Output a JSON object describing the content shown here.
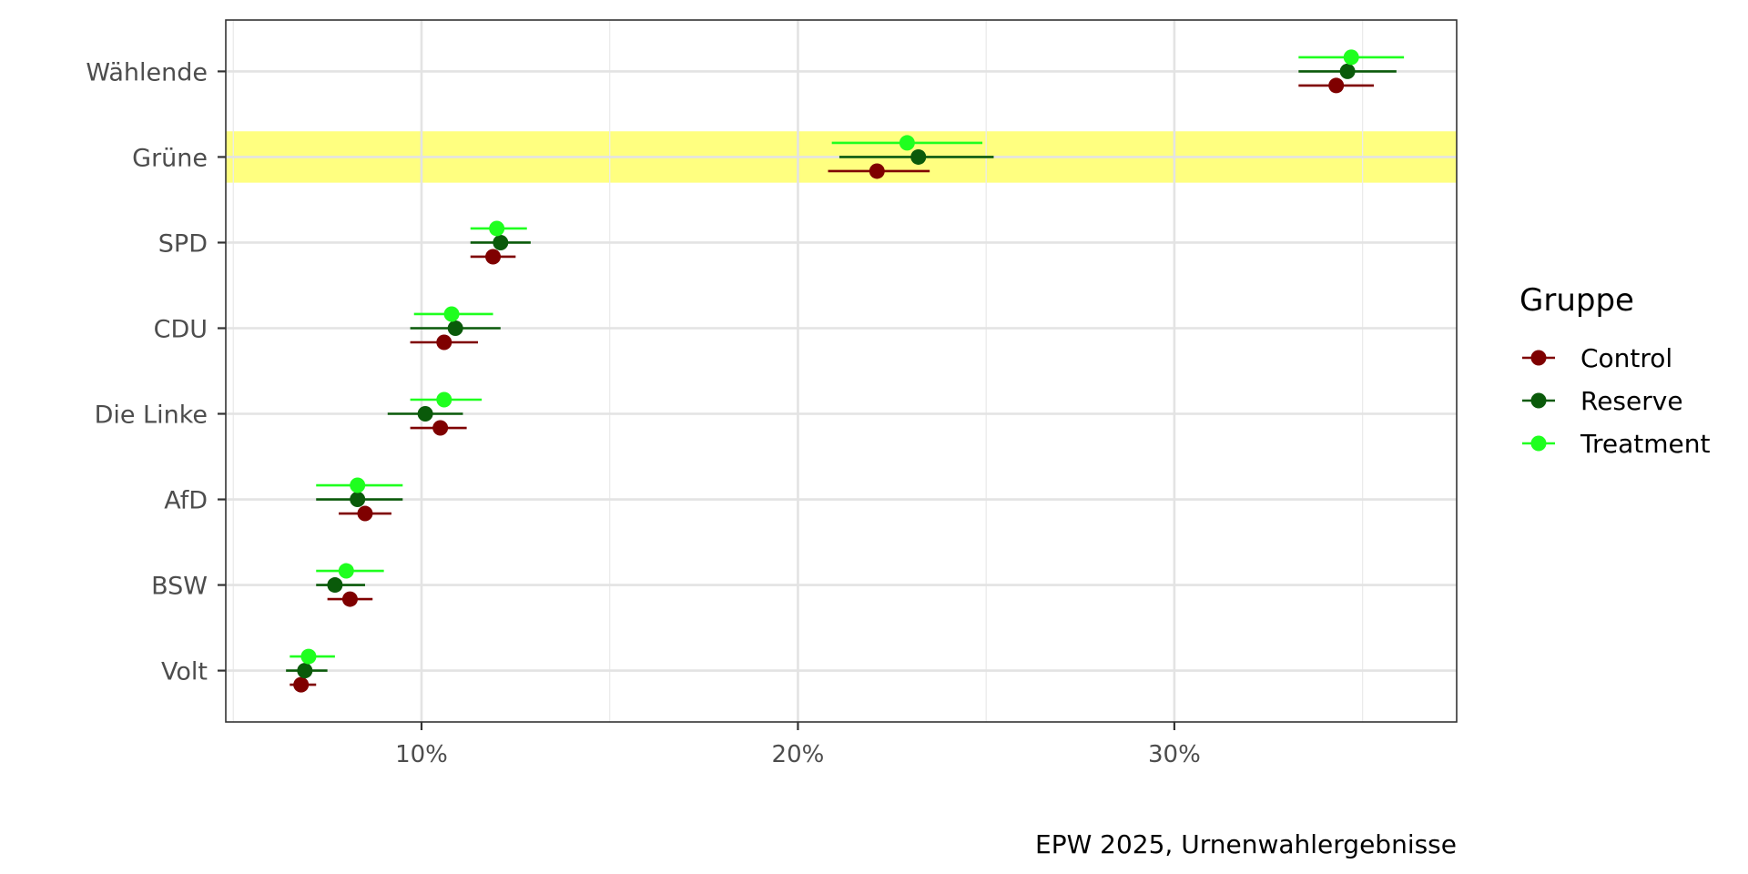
{
  "chart_data": {
    "type": "scatter",
    "subtype": "dot-with-error-bars",
    "categories": [
      "Wählende",
      "Grüne",
      "SPD",
      "CDU",
      "Die Linke",
      "AfD",
      "BSW",
      "Volt"
    ],
    "highlight_category": "Grüne",
    "highlight_color": "#ffff80",
    "x_ticks": [
      10,
      20,
      30
    ],
    "x_tick_labels": [
      "10%",
      "20%",
      "30%"
    ],
    "xlim": [
      4.8,
      37.5
    ],
    "grid": true,
    "legend": {
      "title": "Gruppe",
      "position": "right"
    },
    "series": [
      {
        "name": "Control",
        "color": "#7f0000",
        "values": [
          34.3,
          22.1,
          11.9,
          10.6,
          10.5,
          8.5,
          8.1,
          6.8
        ],
        "lower": [
          33.3,
          20.8,
          11.3,
          9.7,
          9.7,
          7.8,
          7.5,
          6.5
        ],
        "upper": [
          35.3,
          23.5,
          12.5,
          11.5,
          11.2,
          9.2,
          8.7,
          7.2
        ]
      },
      {
        "name": "Reserve",
        "color": "#0a5a0a",
        "values": [
          34.6,
          23.2,
          12.1,
          10.9,
          10.1,
          8.3,
          7.7,
          6.9
        ],
        "lower": [
          33.3,
          21.1,
          11.3,
          9.7,
          9.1,
          7.2,
          7.2,
          6.4
        ],
        "upper": [
          35.9,
          25.2,
          12.9,
          12.1,
          11.1,
          9.5,
          8.5,
          7.5
        ]
      },
      {
        "name": "Treatment",
        "color": "#1fff1f",
        "values": [
          34.7,
          22.9,
          12.0,
          10.8,
          10.6,
          8.3,
          8.0,
          7.0
        ],
        "lower": [
          33.3,
          20.9,
          11.3,
          9.8,
          9.7,
          7.2,
          7.2,
          6.5
        ],
        "upper": [
          36.1,
          24.9,
          12.8,
          11.9,
          11.6,
          9.5,
          9.0,
          7.7
        ]
      }
    ],
    "caption": "EPW 2025, Urnenwahlergebnisse"
  }
}
